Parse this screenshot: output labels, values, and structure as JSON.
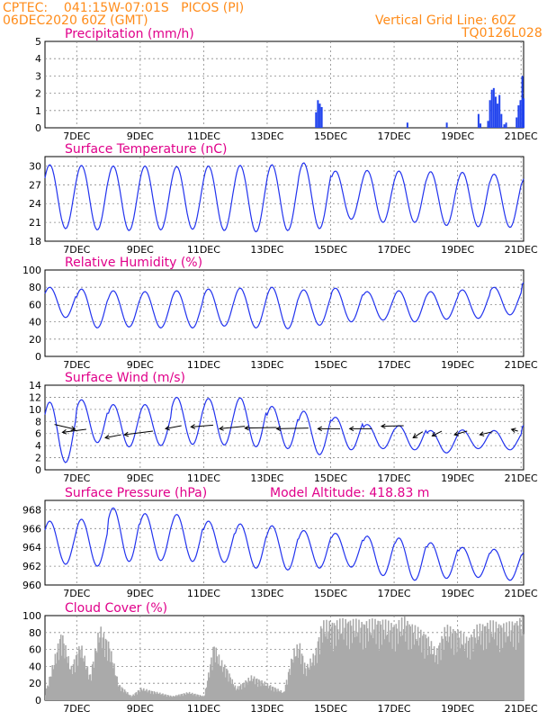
{
  "header": {
    "line1": "CPTEC:    041:15W-07:01S   PICOS (PI)",
    "line2": "06DEC2020 60Z (GMT)",
    "grid_note": "Vertical Grid Line: 60Z",
    "model_code": "TQ0126L028",
    "header_color": "#ff8c1a"
  },
  "colors": {
    "title": "#e0008a",
    "line": "#2233ee",
    "bar": "#2244ee",
    "cloud": "#aaaaaa",
    "arrow": "#000000"
  },
  "chart_data": [
    {
      "type": "bar",
      "title": "Precipitation (mm/h)",
      "x_unit": "days since 06DEC2020 00Z",
      "xlim": [
        0,
        15.08
      ],
      "ylim": [
        0,
        5
      ],
      "yticks": [
        "0",
        "1",
        "2",
        "3",
        "4",
        "5"
      ],
      "xticks": [
        "7DEC",
        "9DEC",
        "11DEC",
        "13DEC",
        "15DEC",
        "17DEC",
        "19DEC",
        "21DEC"
      ],
      "grid": true,
      "bars": [
        [
          8.54,
          0.9
        ],
        [
          8.6,
          1.6
        ],
        [
          8.66,
          1.4
        ],
        [
          8.72,
          1.2
        ],
        [
          11.42,
          0.3
        ],
        [
          12.66,
          0.3
        ],
        [
          13.66,
          0.8
        ],
        [
          13.72,
          0.25
        ],
        [
          13.96,
          0.4
        ],
        [
          14.02,
          1.6
        ],
        [
          14.08,
          2.2
        ],
        [
          14.14,
          2.3
        ],
        [
          14.2,
          1.8
        ],
        [
          14.26,
          1.4
        ],
        [
          14.32,
          1.9
        ],
        [
          14.38,
          0.8
        ],
        [
          14.47,
          0.2
        ],
        [
          14.53,
          0.3
        ],
        [
          14.86,
          0.6
        ],
        [
          14.92,
          1.3
        ],
        [
          14.98,
          1.6
        ],
        [
          15.04,
          3.0
        ],
        [
          15.08,
          1.7
        ]
      ]
    },
    {
      "type": "line",
      "title": "Surface Temperature (nC)",
      "x_unit": "days since 06DEC2020 00Z",
      "xlim": [
        0,
        15.08
      ],
      "ylim": [
        18,
        31.5
      ],
      "yticks": [
        "18",
        "21",
        "24",
        "27",
        "30"
      ],
      "xticks": [
        "7DEC",
        "9DEC",
        "11DEC",
        "13DEC",
        "15DEC",
        "17DEC",
        "19DEC",
        "21DEC"
      ],
      "grid": true,
      "pattern": {
        "max": [
          30.2,
          30.1,
          30.0,
          30.0,
          29.9,
          30.0,
          30.1,
          30.2,
          30.5,
          29.2,
          29.3,
          29.2,
          29.1,
          29.0,
          28.7,
          28.3,
          28.5,
          27.8,
          27.5
        ],
        "min": [
          20.0,
          19.8,
          19.7,
          19.8,
          19.9,
          19.7,
          19.5,
          19.7,
          20.0,
          21.5,
          21.0,
          21.0,
          20.5,
          20.3,
          20.2,
          21.0,
          21.8,
          21.2,
          21.0
        ]
      }
    },
    {
      "type": "line",
      "title": "Relative Humidity (%)",
      "x_unit": "days since 06DEC2020 00Z",
      "xlim": [
        0,
        15.08
      ],
      "ylim": [
        0,
        100
      ],
      "yticks": [
        "0",
        "20",
        "40",
        "60",
        "80",
        "100"
      ],
      "xticks": [
        "7DEC",
        "9DEC",
        "11DEC",
        "13DEC",
        "15DEC",
        "17DEC",
        "19DEC",
        "21DEC"
      ],
      "grid": true,
      "pattern": {
        "max": [
          80,
          78,
          76,
          75,
          76,
          78,
          79,
          80,
          77,
          79,
          75,
          76,
          75,
          77,
          80,
          87,
          93,
          88
        ],
        "min": [
          45,
          33,
          34,
          33,
          33,
          35,
          33,
          32,
          36,
          40,
          42,
          40,
          43,
          44,
          48,
          58,
          58,
          60
        ]
      }
    },
    {
      "type": "line",
      "title": "Surface Wind (m/s)",
      "x_unit": "days since 06DEC2020 00Z",
      "xlim": [
        0,
        15.08
      ],
      "ylim": [
        0,
        14
      ],
      "yticks": [
        "0",
        "2",
        "4",
        "6",
        "8",
        "10",
        "12",
        "14"
      ],
      "xticks": [
        "7DEC",
        "9DEC",
        "11DEC",
        "13DEC",
        "15DEC",
        "17DEC",
        "19DEC",
        "21DEC"
      ],
      "grid": true,
      "pattern": {
        "max": [
          11.2,
          11.6,
          10.8,
          10.8,
          12.0,
          11.8,
          11.9,
          10.5,
          9.7,
          8.7,
          7.5,
          7.3,
          6.5,
          6.6,
          6.5,
          7.5,
          8.0
        ],
        "min": [
          1.2,
          4.5,
          3.8,
          4.0,
          4.2,
          4.1,
          3.8,
          3.5,
          2.5,
          3.3,
          3.5,
          3.3,
          2.8,
          3.5,
          3.3,
          4.2,
          2.5
        ]
      },
      "wind_arrows": [
        [
          0.3,
          7.5,
          0.95,
          6.7
        ],
        [
          1.3,
          6.7,
          0.55,
          6.2
        ],
        [
          2.4,
          5.8,
          1.9,
          5.3
        ],
        [
          3.4,
          6.4,
          2.5,
          5.8
        ],
        [
          4.3,
          7.3,
          3.8,
          6.8
        ],
        [
          5.3,
          7.4,
          4.6,
          7.1
        ],
        [
          6.3,
          7.2,
          5.5,
          6.8
        ],
        [
          7.3,
          7.0,
          6.3,
          6.9
        ],
        [
          8.3,
          6.9,
          7.3,
          6.8
        ],
        [
          9.3,
          6.8,
          8.6,
          6.8
        ],
        [
          10.3,
          6.8,
          9.6,
          6.8
        ],
        [
          11.3,
          7.3,
          10.6,
          7.2
        ],
        [
          11.9,
          6.3,
          11.6,
          5.3
        ],
        [
          12.5,
          6.4,
          12.2,
          5.6
        ],
        [
          13.3,
          6.4,
          12.9,
          5.8
        ],
        [
          14.1,
          6.3,
          13.7,
          5.8
        ],
        [
          14.9,
          6.4,
          14.7,
          6.7
        ]
      ]
    },
    {
      "type": "line",
      "title": "Surface Pressure (hPa)",
      "annotation": "Model Altitude: 418.83 m",
      "x_unit": "days since 06DEC2020 00Z",
      "xlim": [
        0,
        15.08
      ],
      "ylim": [
        960,
        969
      ],
      "yticks": [
        "960",
        "962",
        "964",
        "966",
        "968"
      ],
      "xticks": [
        "7DEC",
        "9DEC",
        "11DEC",
        "13DEC",
        "15DEC",
        "17DEC",
        "19DEC",
        "21DEC"
      ],
      "grid": true,
      "pattern": {
        "max": [
          966.8,
          967.0,
          968.2,
          967.6,
          967.5,
          966.8,
          966.5,
          966.3,
          965.8,
          965.5,
          965.2,
          965.0,
          964.5,
          964.0,
          963.8,
          963.6,
          963.5
        ],
        "min": [
          962.2,
          962.0,
          962.5,
          962.6,
          962.5,
          962.4,
          961.8,
          961.6,
          961.8,
          961.9,
          961.0,
          960.5,
          960.7,
          960.8,
          960.5,
          960.6,
          960.0
        ]
      }
    },
    {
      "type": "bar",
      "title": "Cloud Cover (%)",
      "x_unit": "days since 06DEC2020 00Z",
      "xlim": [
        0,
        15.08
      ],
      "ylim": [
        0,
        100
      ],
      "yticks": [
        "0",
        "20",
        "40",
        "60",
        "80",
        "100"
      ],
      "xticks": [
        "7DEC",
        "9DEC",
        "11DEC",
        "13DEC",
        "15DEC",
        "17DEC",
        "19DEC",
        "21DEC"
      ],
      "grid": true,
      "profile": [
        [
          0,
          10
        ],
        [
          0.3,
          55
        ],
        [
          0.5,
          85
        ],
        [
          0.8,
          40
        ],
        [
          1.1,
          70
        ],
        [
          1.4,
          30
        ],
        [
          1.7,
          90
        ],
        [
          2.0,
          70
        ],
        [
          2.3,
          20
        ],
        [
          2.7,
          5
        ],
        [
          3.0,
          15
        ],
        [
          3.5,
          10
        ],
        [
          4.0,
          5
        ],
        [
          4.5,
          10
        ],
        [
          5.0,
          5
        ],
        [
          5.3,
          70
        ],
        [
          5.5,
          50
        ],
        [
          5.7,
          40
        ],
        [
          6.0,
          15
        ],
        [
          6.5,
          30
        ],
        [
          7.0,
          20
        ],
        [
          7.5,
          10
        ],
        [
          7.8,
          60
        ],
        [
          8.0,
          70
        ],
        [
          8.2,
          40
        ],
        [
          8.5,
          60
        ],
        [
          8.7,
          95
        ],
        [
          9.0,
          95
        ],
        [
          9.5,
          98
        ],
        [
          10.0,
          95
        ],
        [
          10.5,
          98
        ],
        [
          11.0,
          92
        ],
        [
          11.3,
          100
        ],
        [
          11.6,
          90
        ],
        [
          12.0,
          80
        ],
        [
          12.3,
          60
        ],
        [
          12.6,
          90
        ],
        [
          13.0,
          85
        ],
        [
          13.3,
          75
        ],
        [
          13.6,
          90
        ],
        [
          14.0,
          95
        ],
        [
          14.5,
          92
        ],
        [
          15.08,
          100
        ]
      ]
    }
  ]
}
